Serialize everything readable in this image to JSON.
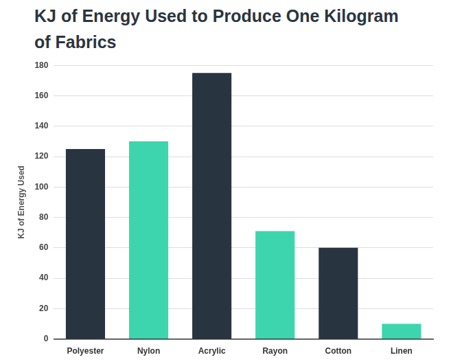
{
  "chart_data": {
    "type": "bar",
    "title": "KJ of Energy Used to Produce One Kilogram of Fabrics",
    "y_label": "KJ of Energy Used",
    "categories": [
      "Polyester",
      "Nylon",
      "Acrylic",
      "Rayon",
      "Cotton",
      "Linen"
    ],
    "values": [
      125,
      130,
      175,
      71,
      60,
      10
    ],
    "colors": [
      "#283440",
      "#3dd5ad",
      "#283440",
      "#3dd5ad",
      "#283440",
      "#3dd5ad"
    ],
    "ylim": [
      0,
      180
    ],
    "yticks": [
      0,
      20,
      40,
      60,
      80,
      100,
      120,
      140,
      160,
      180
    ],
    "grid": true
  }
}
